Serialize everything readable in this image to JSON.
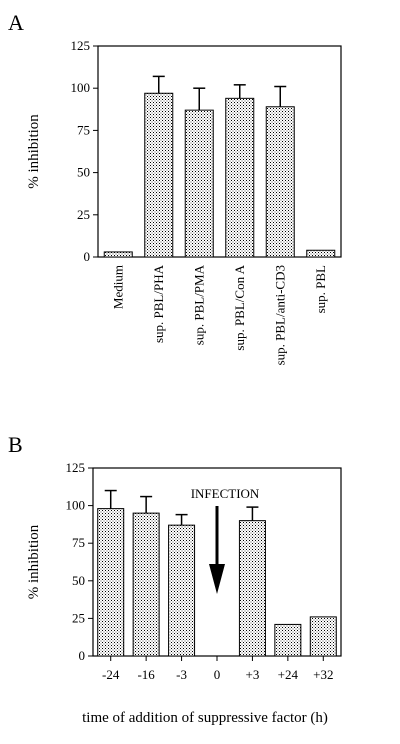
{
  "chart_data": [
    {
      "panel": "A",
      "type": "bar",
      "ylabel": "% inhibition",
      "xlabel": "",
      "ylim": [
        0,
        125
      ],
      "yticks": [
        0,
        25,
        50,
        75,
        100,
        125
      ],
      "categories": [
        "Medium",
        "sup. PBL/PHA",
        "sup. PBL/PMA",
        "sup. PBL/Con A",
        "sup. PBL/anti-CD3",
        "sup. PBL"
      ],
      "values": [
        3,
        97,
        87,
        94,
        89,
        4
      ],
      "errors": [
        0,
        10,
        13,
        8,
        12,
        0
      ],
      "grid": false,
      "legend": "none"
    },
    {
      "panel": "B",
      "type": "bar",
      "ylabel": "% inhibition",
      "xlabel": "time of addition of suppressive factor  (h)",
      "ylim": [
        0,
        125
      ],
      "yticks": [
        0,
        25,
        50,
        75,
        100,
        125
      ],
      "categories": [
        "-24",
        "-16",
        "-3",
        "0",
        "+3",
        "+24",
        "+32"
      ],
      "values": [
        98,
        95,
        87,
        null,
        90,
        21,
        26
      ],
      "errors": [
        12,
        11,
        7,
        0,
        9,
        0,
        0
      ],
      "annotation": "INFECTION",
      "grid": false,
      "legend": "none"
    }
  ]
}
